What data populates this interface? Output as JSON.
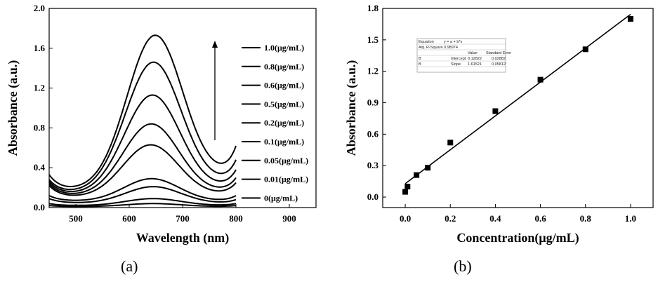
{
  "chart_data": [
    {
      "type": "line",
      "panel_label": "(a)",
      "xlabel": "Wavelength (nm)",
      "ylabel": "Absorbance (a.u.)",
      "xlim": [
        450,
        950
      ],
      "ylim": [
        0.0,
        2.0
      ],
      "xticks": [
        "500",
        "600",
        "700",
        "800",
        "900"
      ],
      "yticks": [
        "0.0",
        "0.4",
        "0.8",
        "1.2",
        "1.6",
        "2.0"
      ],
      "legend_order": "top-to-bottom, increasing concentration indicated by upward arrow",
      "series": [
        {
          "name": "1.0(μg/mL)",
          "peak_x": 648,
          "peak_y": 1.73,
          "x": [
            450,
            490,
            800
          ],
          "y": [
            0.33,
            0.24,
            0.62
          ]
        },
        {
          "name": "0.8(μg/mL)",
          "peak_x": 645,
          "peak_y": 1.46,
          "x": [
            450,
            490,
            800
          ],
          "y": [
            0.28,
            0.21,
            0.48
          ]
        },
        {
          "name": "0.6(μg/mL)",
          "peak_x": 643,
          "peak_y": 1.13,
          "x": [
            450,
            490,
            800
          ],
          "y": [
            0.26,
            0.19,
            0.38
          ]
        },
        {
          "name": "0.5(μg/mL)",
          "peak_x": 641,
          "peak_y": 0.84,
          "x": [
            450,
            490,
            800
          ],
          "y": [
            0.24,
            0.17,
            0.3
          ]
        },
        {
          "name": "0.2(μg/mL)",
          "peak_x": 640,
          "peak_y": 0.63,
          "x": [
            450,
            490,
            800
          ],
          "y": [
            0.22,
            0.15,
            0.25
          ]
        },
        {
          "name": "0.1(μg/mL)",
          "peak_x": 642,
          "peak_y": 0.29,
          "x": [
            450,
            490,
            800
          ],
          "y": [
            0.12,
            0.1,
            0.12
          ]
        },
        {
          "name": "0.05(μg/mL)",
          "peak_x": 645,
          "peak_y": 0.21,
          "x": [
            450,
            490,
            800
          ],
          "y": [
            0.09,
            0.07,
            0.08
          ]
        },
        {
          "name": "0.01(μg/mL)",
          "peak_x": 645,
          "peak_y": 0.09,
          "x": [
            450,
            490,
            800
          ],
          "y": [
            0.04,
            0.03,
            0.04
          ]
        },
        {
          "name": "0(μg/mL)",
          "peak_x": 645,
          "peak_y": 0.04,
          "x": [
            450,
            490,
            800
          ],
          "y": [
            0.02,
            0.015,
            0.02
          ]
        }
      ]
    },
    {
      "type": "scatter",
      "panel_label": "(b)",
      "xlabel": "Concentration(μg/mL)",
      "ylabel": "Absorbance (a.u.)",
      "xlim": [
        -0.1,
        1.1
      ],
      "ylim": [
        -0.1,
        1.8
      ],
      "xticks": [
        "0.0",
        "0.2",
        "0.4",
        "0.6",
        "0.8",
        "1.0"
      ],
      "yticks": [
        "0.0",
        "0.3",
        "0.6",
        "0.9",
        "1.2",
        "1.5",
        "1.8"
      ],
      "points": {
        "x": [
          0,
          0.01,
          0.05,
          0.1,
          0.2,
          0.4,
          0.6,
          0.8,
          1.0
        ],
        "y": [
          0.05,
          0.1,
          0.21,
          0.28,
          0.52,
          0.82,
          1.12,
          1.41,
          1.7
        ]
      },
      "fit_line": {
        "intercept": 0.12822,
        "slope": 1.61521,
        "x_range": [
          0,
          1.0
        ]
      },
      "fit_table": {
        "equation_label": "Equation",
        "equation": "y = a + b*x",
        "adj_r_label": "Adj. R-Square",
        "adj_r_value": "0.98974",
        "value_header": "Value",
        "stderr_header": "Standard Error",
        "rows": [
          {
            "name": "B",
            "param": "Intercept",
            "value": "0.12822",
            "stderr": "0.02882"
          },
          {
            "name": "B",
            "param": "Slope",
            "value": "1.61521",
            "stderr": "0.05812"
          }
        ]
      }
    }
  ]
}
